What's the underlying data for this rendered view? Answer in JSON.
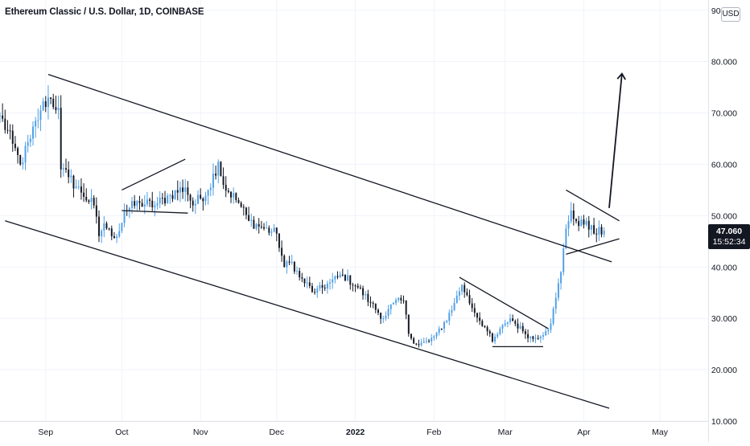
{
  "header": {
    "title": "Ethereum Classic / U.S. Dollar, 1D, COINBASE",
    "currency": "USD"
  },
  "price_label": {
    "value": "47.060",
    "countdown": "15:52:34"
  },
  "colors": {
    "up": "#4f9fe6",
    "down": "#131722",
    "line": "#131722",
    "grid": "#f0f3fa"
  },
  "chart_data": {
    "type": "candlestick",
    "y_ticks": [
      "90.000",
      "80.000",
      "70.000",
      "60.000",
      "50.000",
      "40.000",
      "30.000",
      "20.000",
      "10.000"
    ],
    "y_tick_values": [
      90,
      80,
      70,
      60,
      50,
      40,
      30,
      20,
      10
    ],
    "ylim": [
      10,
      92
    ],
    "x_ticks": [
      "Sep",
      "Oct",
      "Nov",
      "Dec",
      "2022",
      "Feb",
      "Mar",
      "Apr",
      "May"
    ],
    "x_tick_dates": [
      "2021-09-01",
      "2021-10-01",
      "2021-11-01",
      "2021-12-01",
      "2022-01-01",
      "2022-02-01",
      "2022-03-01",
      "2022-04-01",
      "2022-05-01"
    ],
    "xlim": [
      "2021-08-14",
      "2022-05-20"
    ],
    "grid": true,
    "price_anchors": [
      [
        "2021-08-14",
        69.5
      ],
      [
        "2021-08-19",
        64.0
      ],
      [
        "2021-08-22",
        60.0
      ],
      [
        "2021-08-26",
        65.0
      ],
      [
        "2021-08-30",
        70.5
      ],
      [
        "2021-09-02",
        73.0
      ],
      [
        "2021-09-06",
        71.0
      ],
      [
        "2021-09-07",
        59.0
      ],
      [
        "2021-09-10",
        57.5
      ],
      [
        "2021-09-15",
        54.5
      ],
      [
        "2021-09-20",
        52.0
      ],
      [
        "2021-09-22",
        46.0
      ],
      [
        "2021-09-24",
        48.5
      ],
      [
        "2021-09-27",
        46.0
      ],
      [
        "2021-09-30",
        47.0
      ],
      [
        "2021-10-02",
        51.0
      ],
      [
        "2021-10-08",
        52.5
      ],
      [
        "2021-10-14",
        52.0
      ],
      [
        "2021-10-20",
        54.0
      ],
      [
        "2021-10-26",
        55.5
      ],
      [
        "2021-10-29",
        52.0
      ],
      [
        "2021-11-04",
        55.0
      ],
      [
        "2021-11-08",
        60.5
      ],
      [
        "2021-11-10",
        56.0
      ],
      [
        "2021-11-16",
        52.5
      ],
      [
        "2021-11-20",
        49.0
      ],
      [
        "2021-11-26",
        47.5
      ],
      [
        "2021-12-01",
        46.5
      ],
      [
        "2021-12-04",
        40.0
      ],
      [
        "2021-12-07",
        41.0
      ],
      [
        "2021-12-10",
        38.0
      ],
      [
        "2021-12-16",
        35.0
      ],
      [
        "2021-12-22",
        37.0
      ],
      [
        "2021-12-27",
        38.5
      ],
      [
        "2022-01-02",
        36.0
      ],
      [
        "2022-01-07",
        33.0
      ],
      [
        "2022-01-12",
        30.0
      ],
      [
        "2022-01-16",
        33.0
      ],
      [
        "2022-01-20",
        33.5
      ],
      [
        "2022-01-22",
        27.0
      ],
      [
        "2022-01-25",
        25.0
      ],
      [
        "2022-01-30",
        25.5
      ],
      [
        "2022-02-04",
        28.0
      ],
      [
        "2022-02-09",
        33.0
      ],
      [
        "2022-02-12",
        36.5
      ],
      [
        "2022-02-16",
        32.0
      ],
      [
        "2022-02-22",
        27.5
      ],
      [
        "2022-02-24",
        25.5
      ],
      [
        "2022-03-01",
        29.0
      ],
      [
        "2022-03-03",
        30.0
      ],
      [
        "2022-03-08",
        27.5
      ],
      [
        "2022-03-12",
        26.0
      ],
      [
        "2022-03-17",
        27.5
      ],
      [
        "2022-03-19",
        29.0
      ],
      [
        "2022-03-21",
        34.0
      ],
      [
        "2022-03-23",
        39.0
      ],
      [
        "2022-03-25",
        47.5
      ],
      [
        "2022-03-27",
        51.0
      ],
      [
        "2022-03-30",
        48.0
      ],
      [
        "2022-04-02",
        49.0
      ],
      [
        "2022-04-05",
        46.5
      ],
      [
        "2022-04-09",
        47.06
      ]
    ],
    "annotations": [
      {
        "type": "trendline",
        "name": "upper-channel-line",
        "from": [
          "2021-09-02",
          77.5
        ],
        "to": [
          "2022-04-12",
          41.0
        ]
      },
      {
        "type": "trendline",
        "name": "lower-channel-line",
        "from": [
          "2021-08-16",
          49.0
        ],
        "to": [
          "2022-04-11",
          12.5
        ]
      },
      {
        "type": "trendline",
        "name": "flag-upper-line",
        "from": [
          "2021-10-01",
          55.0
        ],
        "to": [
          "2021-10-26",
          61.0
        ]
      },
      {
        "type": "trendline",
        "name": "flag-lower-line",
        "from": [
          "2021-10-01",
          51.0
        ],
        "to": [
          "2021-10-27",
          50.5
        ]
      },
      {
        "type": "trendline",
        "name": "wedge-upper-line",
        "from": [
          "2022-02-11",
          38.0
        ],
        "to": [
          "2022-03-18",
          28.0
        ]
      },
      {
        "type": "trendline",
        "name": "wedge-lower-line",
        "from": [
          "2022-02-24",
          24.5
        ],
        "to": [
          "2022-03-16",
          24.5
        ]
      },
      {
        "type": "trendline",
        "name": "pennant-upper-line",
        "from": [
          "2022-03-25",
          55.0
        ],
        "to": [
          "2022-04-15",
          49.0
        ]
      },
      {
        "type": "trendline",
        "name": "pennant-lower-line",
        "from": [
          "2022-03-25",
          42.5
        ],
        "to": [
          "2022-04-15",
          45.5
        ]
      },
      {
        "type": "arrow",
        "name": "breakout-arrow",
        "from": [
          "2022-04-11",
          51.5
        ],
        "to": [
          "2022-04-16",
          77.5
        ]
      }
    ]
  }
}
